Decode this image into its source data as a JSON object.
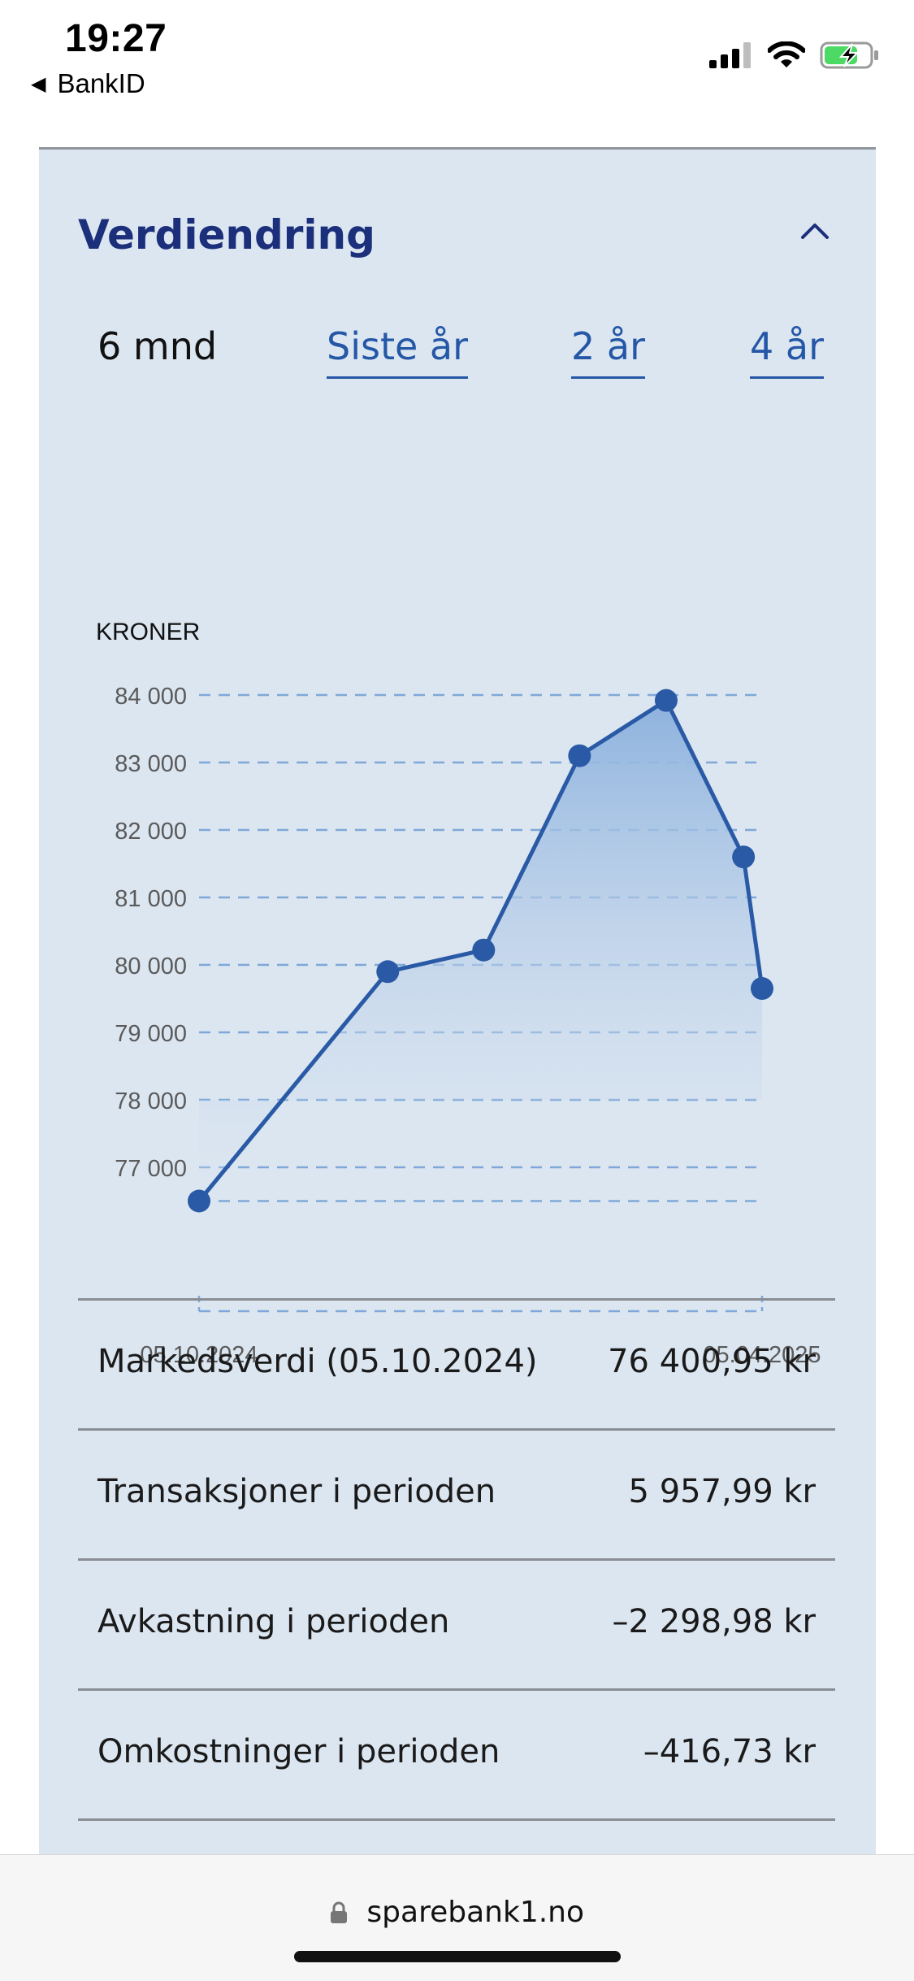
{
  "status_bar": {
    "time": "19:27",
    "back_app": "BankID"
  },
  "card": {
    "title": "Verdiendring",
    "tabs": [
      {
        "label": "6 mnd",
        "selected": true
      },
      {
        "label": "Siste år",
        "selected": false
      },
      {
        "label": "2 år",
        "selected": false
      },
      {
        "label": "4 år",
        "selected": false
      }
    ]
  },
  "chart_data": {
    "type": "area",
    "ylabel": "KRONER",
    "y_ticks": [
      "84 000",
      "83 000",
      "82 000",
      "81 000",
      "80 000",
      "79 000",
      "78 000",
      "77 000"
    ],
    "ylim": [
      76500,
      84000
    ],
    "x_labels": [
      "05.10.2024",
      "05.04.2025"
    ],
    "x": [
      "2024-10-05",
      "2024-12-05",
      "2025-01-05",
      "2025-02-05",
      "2025-03-05",
      "2025-03-30",
      "2025-04-05"
    ],
    "values": [
      76500,
      79900,
      80220,
      83100,
      83920,
      81600,
      79650
    ],
    "colors": {
      "line": "#2a5aa6",
      "fill_top": "#8db2de",
      "grid": "#7fa8d8"
    }
  },
  "summary": [
    {
      "label": "Markedsverdi (05.10.2024)",
      "value": "76 400,95 kr"
    },
    {
      "label": "Transaksjoner i perioden",
      "value": "5 957,99 kr"
    },
    {
      "label": "Avkastning i perioden",
      "value": "–2 298,98 kr"
    },
    {
      "label": "Omkostninger i perioden",
      "value": "–416,73 kr"
    }
  ],
  "browser": {
    "url": "sparebank1.no"
  }
}
